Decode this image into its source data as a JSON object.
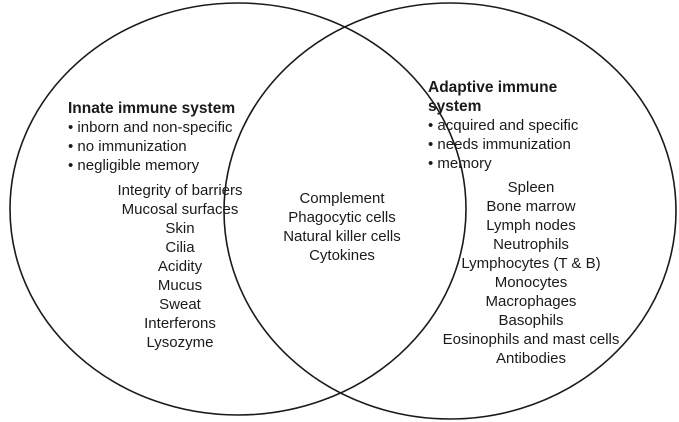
{
  "left": {
    "title": "Innate immune system",
    "bullets": [
      "inborn and non-specific",
      "no immunization",
      "negligible memory"
    ],
    "items": [
      "Integrity of barriers",
      "Mucosal surfaces",
      "Skin",
      "Cilia",
      "Acidity",
      "Mucus",
      "Sweat",
      "Interferons",
      "Lysozyme"
    ]
  },
  "overlap": {
    "items": [
      "Complement",
      "Phagocytic cells",
      "Natural killer cells",
      "Cytokines"
    ]
  },
  "right": {
    "title_line1": "Adaptive immune",
    "title_line2": "system",
    "bullets": [
      "acquired and specific",
      "needs immunization",
      "memory"
    ],
    "items": [
      "Spleen",
      "Bone marrow",
      "Lymph nodes",
      "Neutrophils",
      "Lymphocytes (T & B)",
      "Monocytes",
      "Macrophages",
      "Basophils",
      "Eosinophils and mast cells",
      "Antibodies"
    ]
  }
}
